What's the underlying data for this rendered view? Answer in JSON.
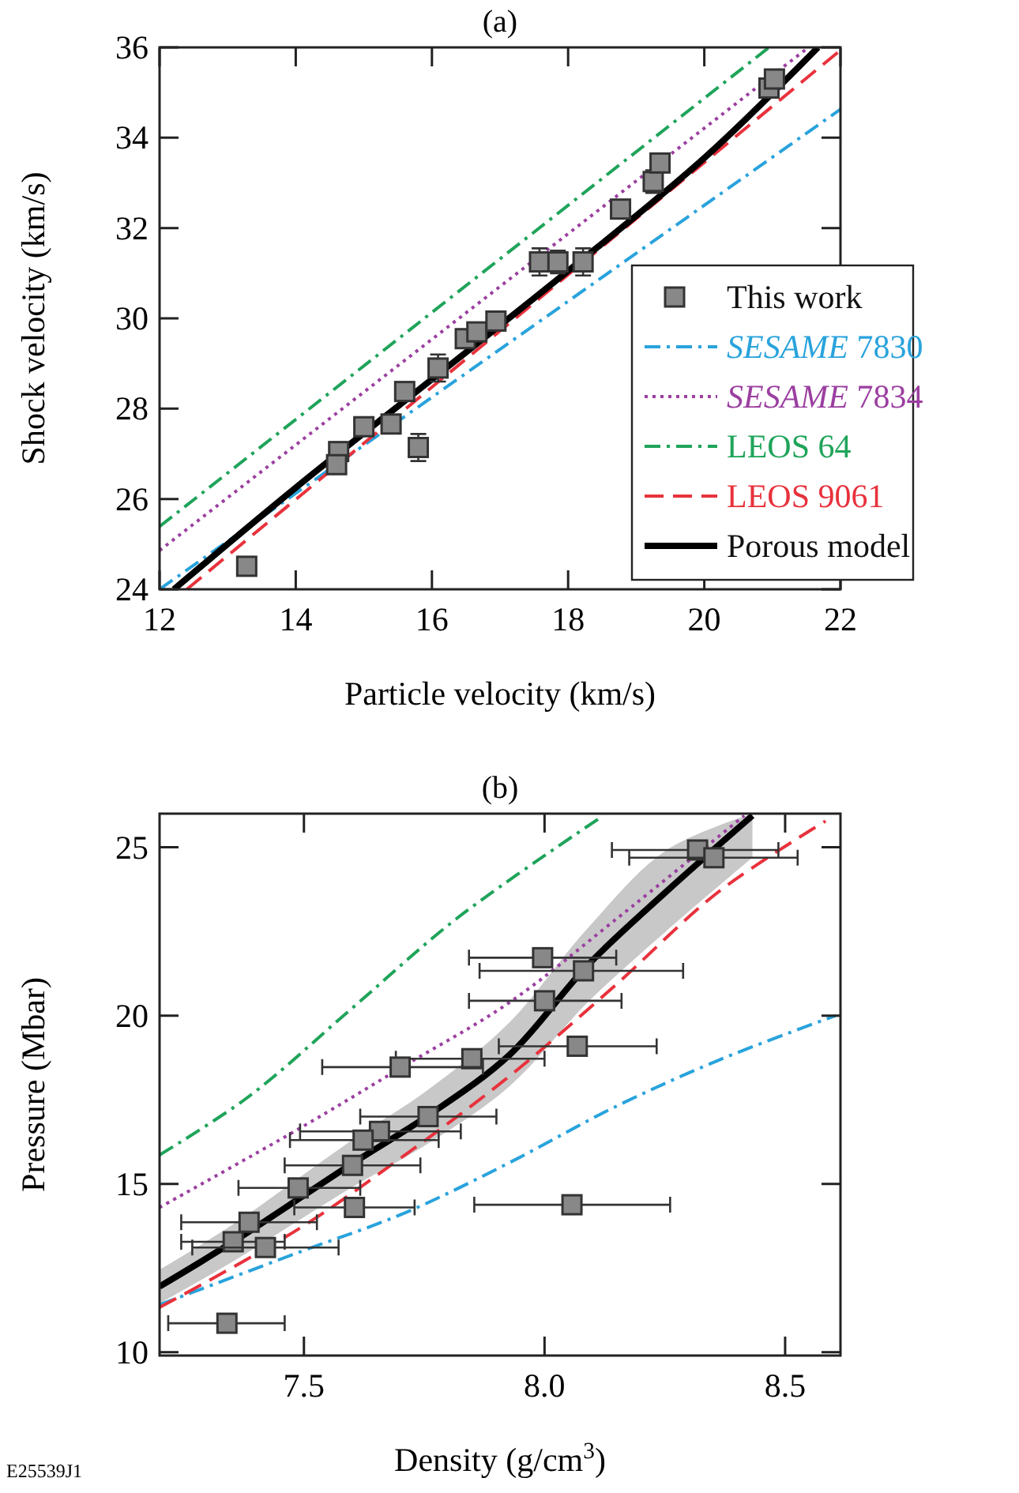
{
  "chart_data": [
    {
      "type": "scatter",
      "title": "(a)",
      "xlabel": "Particle velocity (km/s)",
      "ylabel": "Shock velocity (km/s)",
      "xlim": [
        12,
        22
      ],
      "ylim": [
        24,
        36
      ],
      "xticks": [
        12,
        14,
        16,
        18,
        20,
        22
      ],
      "yticks": [
        24,
        26,
        28,
        30,
        32,
        34,
        36
      ],
      "legend": "right",
      "series": [
        {
          "name": "This work",
          "marker": "square",
          "color": "#888888",
          "x": [
            13.28,
            14.63,
            14.6,
            15.0,
            15.4,
            15.6,
            15.8,
            16.09,
            16.49,
            16.66,
            16.94,
            17.58,
            17.85,
            18.22,
            18.77,
            19.25,
            19.35,
            20.95,
            21.03
          ],
          "values": [
            24.51,
            27.05,
            26.76,
            27.6,
            27.66,
            28.38,
            27.14,
            28.9,
            29.55,
            29.7,
            29.94,
            31.25,
            31.25,
            31.25,
            32.42,
            33.03,
            33.44,
            35.1,
            35.3
          ],
          "errors": [
            null,
            null,
            null,
            null,
            null,
            null,
            0.3,
            0.3,
            null,
            null,
            null,
            0.3,
            0.25,
            0.3,
            null,
            0.25,
            null,
            null,
            null
          ]
        },
        {
          "name": "SESAME 7830",
          "type": "line",
          "line_style": "dashdot",
          "color": "#29a3dc",
          "x": [
            12,
            22
          ],
          "values": [
            24,
            34.63
          ]
        },
        {
          "name": "SESAME 7834",
          "type": "line",
          "line_style": "dotted",
          "color": "#9b3fa0",
          "x": [
            12,
            21.53
          ],
          "values": [
            24.86,
            36
          ]
        },
        {
          "name": "LEOS 64",
          "type": "line",
          "line_style": "dashdot",
          "color": "#1fa45a",
          "x": [
            12,
            20.95
          ],
          "values": [
            25.39,
            36
          ]
        },
        {
          "name": "LEOS 9061",
          "type": "line",
          "line_style": "dashed",
          "color": "#e8323c",
          "x": [
            12.4,
            22
          ],
          "values": [
            24,
            35.94
          ]
        },
        {
          "name": "Porous model",
          "type": "line",
          "line_style": "solid",
          "color": "#000000",
          "x": [
            12.21,
            14,
            16,
            18,
            20,
            21.67
          ],
          "values": [
            24,
            26.25,
            28.65,
            31.05,
            33.55,
            36
          ]
        }
      ]
    },
    {
      "type": "scatter",
      "title": "(b)",
      "xlabel": "Density (g/cm$^{3}$)",
      "ylabel": "Pressure (Mbar)",
      "xlim": [
        7.2,
        8.615
      ],
      "ylim": [
        9.9,
        26
      ],
      "xticks": [
        7.5,
        {
          "value": 8,
          "label": "8.0"
        },
        8.5
      ],
      "yticks": [
        10,
        15,
        20,
        25
      ],
      "annotations": [
        "E25539J1"
      ],
      "series": [
        {
          "marker": "square",
          "color": "#888888",
          "x": [
            8.318,
            8.352,
            7.996,
            8.081,
            8.0,
            8.068,
            7.849,
            7.7,
            7.758,
            7.657,
            7.623,
            7.601,
            7.488,
            7.605,
            8.057,
            7.386,
            7.353,
            7.42,
            7.34
          ],
          "values": [
            24.92,
            24.69,
            21.72,
            21.33,
            20.44,
            19.09,
            18.72,
            18.47,
            17.0,
            16.56,
            16.3,
            15.55,
            14.88,
            14.3,
            14.38,
            13.86,
            13.28,
            13.11,
            10.86
          ],
          "xerrors": [
            [
              8.14,
              8.486
            ],
            [
              8.176,
              8.526
            ],
            [
              7.843,
              8.149
            ],
            [
              7.865,
              8.288
            ],
            [
              7.843,
              8.16
            ],
            [
              7.905,
              8.233
            ],
            [
              7.691,
              8.0
            ],
            [
              7.538,
              7.872
            ],
            [
              7.617,
              7.9
            ],
            [
              7.492,
              7.826
            ],
            [
              7.471,
              7.78
            ],
            [
              7.46,
              7.742
            ],
            [
              7.364,
              7.617
            ],
            [
              7.48,
              7.73
            ],
            [
              7.854,
              8.261
            ],
            [
              7.245,
              7.527
            ],
            [
              7.245,
              7.46
            ],
            [
              7.268,
              7.572
            ],
            [
              7.218,
              7.46
            ]
          ]
        },
        {
          "type": "line",
          "line_style": "dashdot",
          "color": "#29a3dc",
          "x": [
            7.2,
            7.49,
            7.71,
            7.927,
            8.144,
            8.361,
            8.605
          ],
          "values": [
            11.41,
            12.97,
            14.14,
            15.63,
            17.27,
            18.67,
            20.0
          ]
        },
        {
          "type": "line",
          "line_style": "dotted",
          "color": "#9b3fa0",
          "x": [
            7.2,
            7.49,
            7.71,
            7.927,
            8.144,
            8.415
          ],
          "values": [
            14.3,
            16.64,
            18.52,
            20.39,
            22.81,
            25.94
          ]
        },
        {
          "type": "line",
          "line_style": "dashdot",
          "color": "#1fa45a",
          "x": [
            7.2,
            7.384,
            7.601,
            7.818,
            8.122
          ],
          "values": [
            15.86,
            17.58,
            20.23,
            22.89,
            25.94
          ]
        },
        {
          "type": "line",
          "line_style": "dashed",
          "color": "#e8323c",
          "x": [
            7.2,
            7.49,
            7.71,
            7.927,
            8.144,
            8.361,
            8.584
          ],
          "values": [
            11.33,
            13.67,
            15.86,
            18.2,
            20.86,
            23.67,
            25.78
          ]
        },
        {
          "type": "line",
          "line_style": "solid",
          "color": "#000000",
          "x": [
            7.2,
            7.353,
            7.6,
            7.758,
            7.927,
            8.09,
            8.252,
            8.432
          ],
          "values": [
            11.95,
            13.28,
            15.6,
            17.03,
            18.83,
            21.5,
            23.67,
            25.94
          ],
          "lower": [
            11.45,
            12.7,
            14.9,
            16.2,
            17.9,
            20.4,
            22.5,
            24.7
          ],
          "upper": [
            12.45,
            13.8,
            16.3,
            17.8,
            19.8,
            22.6,
            24.9,
            26.0
          ]
        }
      ]
    }
  ]
}
